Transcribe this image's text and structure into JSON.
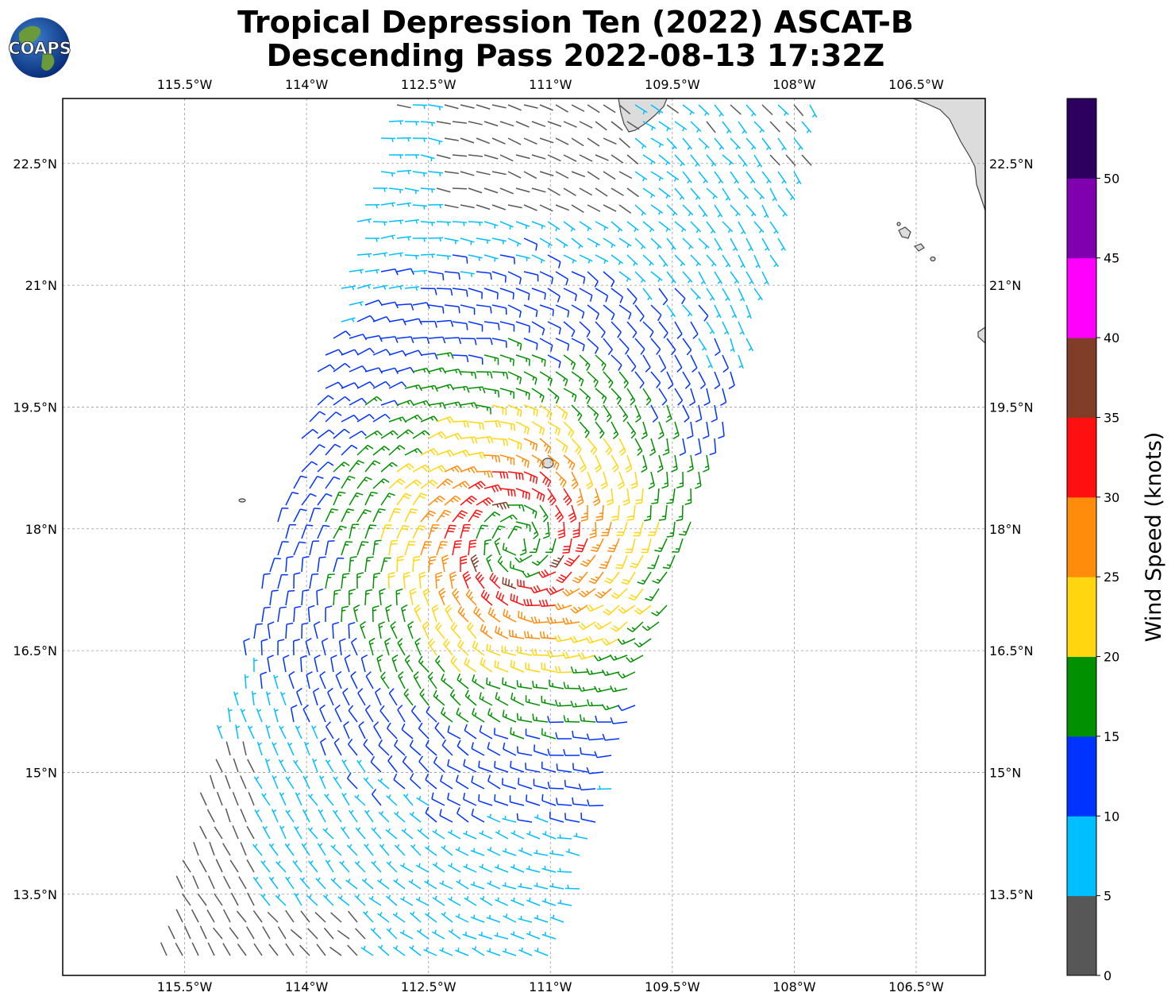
{
  "title": {
    "line1": "Tropical Depression Ten (2022) ASCAT-B",
    "line2": "Descending Pass 2022-08-13 17:32Z"
  },
  "logo": {
    "text": "COAPS",
    "icon": "globe-logo-icon"
  },
  "map": {
    "projection": "PlateCarree",
    "lon_range": [
      -117.0,
      -105.65
    ],
    "lat_range": [
      12.5,
      23.3
    ],
    "gridlines": true,
    "lon_ticks": [
      {
        "value": -115.5,
        "label": "115.5°W"
      },
      {
        "value": -114.0,
        "label": "114°W"
      },
      {
        "value": -112.5,
        "label": "112.5°W"
      },
      {
        "value": -111.0,
        "label": "111°W"
      },
      {
        "value": -109.5,
        "label": "109.5°W"
      },
      {
        "value": -108.0,
        "label": "108°W"
      },
      {
        "value": -106.5,
        "label": "106.5°W"
      }
    ],
    "lat_ticks": [
      {
        "value": 22.5,
        "label": "22.5°N"
      },
      {
        "value": 21.0,
        "label": "21°N"
      },
      {
        "value": 19.5,
        "label": "19.5°N"
      },
      {
        "value": 18.0,
        "label": "18°N"
      },
      {
        "value": 16.5,
        "label": "16.5°N"
      },
      {
        "value": 15.0,
        "label": "15°N"
      },
      {
        "value": 13.5,
        "label": "13.5°N"
      }
    ],
    "storm_center": {
      "lon": -111.4,
      "lat": 17.85
    },
    "swath": {
      "description": "ASCAT-B descending swath"
    },
    "land_color": "#dcdcdc",
    "coastline_color": "#444444"
  },
  "colorbar": {
    "title": "Wind Speed (knots)",
    "bounds": [
      0,
      5,
      10,
      15,
      20,
      25,
      30,
      35,
      40,
      45,
      50,
      55
    ],
    "tick_labels": [
      "0",
      "5",
      "10",
      "15",
      "20",
      "25",
      "30",
      "35",
      "40",
      "45",
      "50"
    ],
    "colors": [
      "#575757",
      "#00bfff",
      "#0033ff",
      "#009000",
      "#ffd60f",
      "#ff8c0a",
      "#ff1010",
      "#803d28",
      "#ff00ff",
      "#8000b0",
      "#2d0060"
    ]
  }
}
